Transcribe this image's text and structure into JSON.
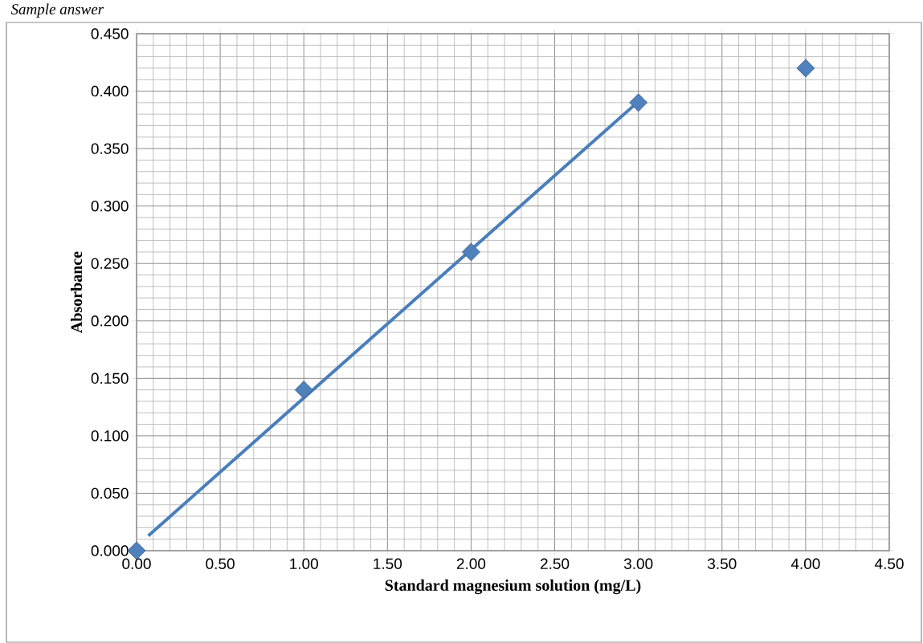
{
  "chart_data": {
    "type": "scatter",
    "annotations": [
      "Sample answer"
    ],
    "xlabel": "Standard magnesium solution (mg/L)",
    "ylabel": "Absorbance",
    "xlim": [
      0,
      4.5
    ],
    "ylim": [
      0,
      0.45
    ],
    "xticks": [
      {
        "value": 0,
        "label": "0.00"
      },
      {
        "value": 0.5,
        "label": "0.50"
      },
      {
        "value": 1,
        "label": "1.00"
      },
      {
        "value": 1.5,
        "label": "1.50"
      },
      {
        "value": 2,
        "label": "2.00"
      },
      {
        "value": 2.5,
        "label": "2.50"
      },
      {
        "value": 3,
        "label": "3.00"
      },
      {
        "value": 3.5,
        "label": "3.50"
      },
      {
        "value": 4,
        "label": "4.00"
      },
      {
        "value": 4.5,
        "label": "4.50"
      }
    ],
    "yticks": [
      {
        "value": 0,
        "label": "0.000"
      },
      {
        "value": 0.05,
        "label": "0.050"
      },
      {
        "value": 0.1,
        "label": "0.100"
      },
      {
        "value": 0.15,
        "label": "0.150"
      },
      {
        "value": 0.2,
        "label": "0.200"
      },
      {
        "value": 0.25,
        "label": "0.250"
      },
      {
        "value": 0.3,
        "label": "0.300"
      },
      {
        "value": 0.35,
        "label": "0.350"
      },
      {
        "value": 0.4,
        "label": "0.400"
      },
      {
        "value": 0.45,
        "label": "0.450"
      }
    ],
    "grid": true,
    "series": [
      {
        "marker": "diamond",
        "color": "#4f81bd",
        "x": [
          0,
          1,
          2,
          3,
          4
        ],
        "values": [
          0,
          0.14,
          0.26,
          0.39,
          0.42
        ]
      },
      {
        "type": "line",
        "color": "#4a7ebb",
        "line_style": "solid",
        "x": [
          0.07,
          3
        ],
        "values": [
          0.013,
          0.391
        ]
      }
    ]
  }
}
